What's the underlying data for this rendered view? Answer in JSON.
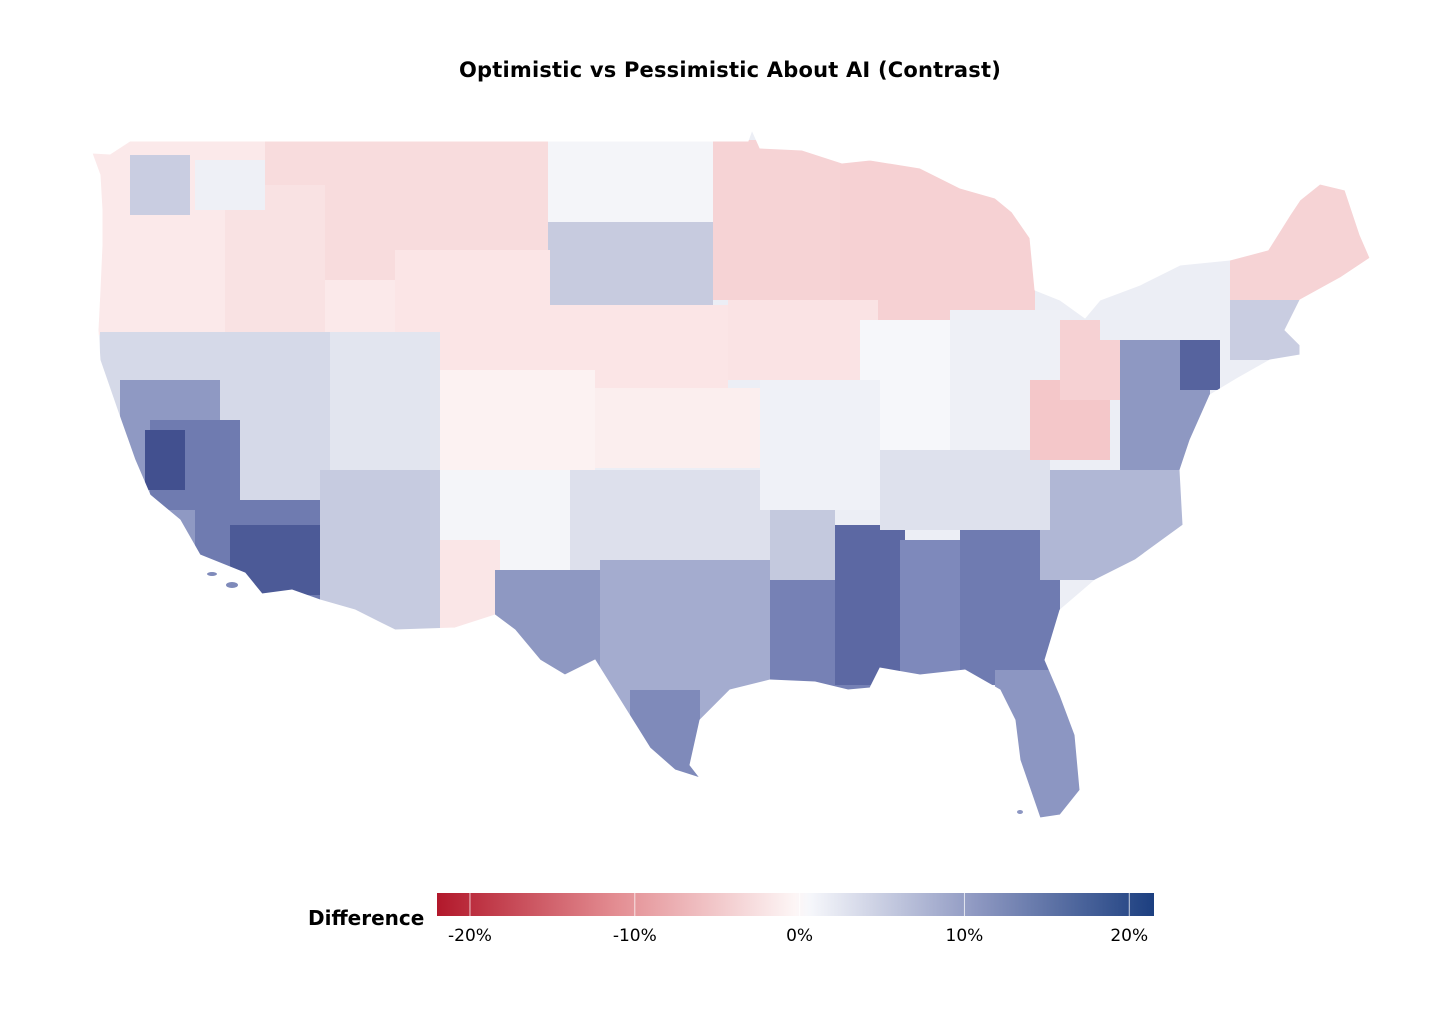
{
  "title": "Optimistic vs Pessimistic About AI (Contrast)",
  "legend": {
    "title": "Difference",
    "min": -22,
    "max": 21.5,
    "ticks": [
      {
        "value": -20,
        "label": "-20%"
      },
      {
        "value": -10,
        "label": "-10%"
      },
      {
        "value": 0,
        "label": "0%"
      },
      {
        "value": 10,
        "label": "10%"
      },
      {
        "value": 20,
        "label": "20%"
      }
    ],
    "colors": {
      "negative": "#b2182b",
      "neutral": "#ffffff",
      "positive": "#1c3f80"
    }
  },
  "chart_data": {
    "type": "heatmap",
    "map": "contiguous United States, sub-state regions",
    "variable": "Difference",
    "units": "%",
    "value_range": [
      -22,
      21.5
    ],
    "regional_pattern": [
      {
        "region": "Washington / Oregon / Idaho / Montana",
        "value": -3
      },
      {
        "region": "Northern Plains (ND, SD west)",
        "value": -2
      },
      {
        "region": "Minnesota / Wisconsin / Michigan UP",
        "value": -5
      },
      {
        "region": "Maine / Northern New England",
        "value": -6
      },
      {
        "region": "Western PA / West Virginia / Ohio Valley",
        "value": -7
      },
      {
        "region": "California Coast / Bay Area",
        "value": 14
      },
      {
        "region": "Southern California / Los Angeles",
        "value": 17
      },
      {
        "region": "Nevada / Utah / Arizona",
        "value": 5
      },
      {
        "region": "Texas",
        "value": 9
      },
      {
        "region": "Louisiana / Mississippi / Alabama",
        "value": 12
      },
      {
        "region": "Georgia / Carolinas",
        "value": 10
      },
      {
        "region": "Florida",
        "value": 9
      },
      {
        "region": "Mid-Atlantic corridor (DC–NYC)",
        "value": 10
      }
    ]
  }
}
